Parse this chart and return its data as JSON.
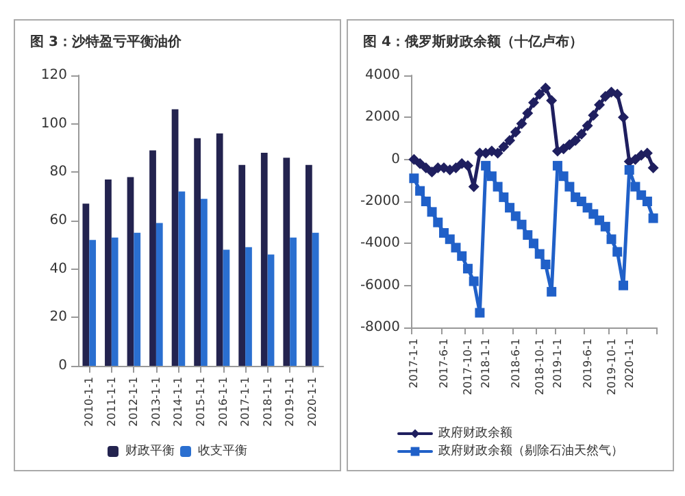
{
  "chart_data": [
    {
      "type": "bar",
      "title": "图 3：沙特盈亏平衡油价",
      "categories": [
        "2010-1-1",
        "2011-1-1",
        "2012-1-1",
        "2013-1-1",
        "2014-1-1",
        "2015-1-1",
        "2016-1-1",
        "2017-1-1",
        "2018-1-1",
        "2019-1-1",
        "2020-1-1"
      ],
      "series": [
        {
          "name": "财政平衡",
          "color": "#23234f",
          "values": [
            67,
            77,
            78,
            89,
            106,
            94,
            96,
            83,
            88,
            86,
            83
          ]
        },
        {
          "name": "收支平衡",
          "color": "#2a6fd0",
          "values": [
            52,
            53,
            55,
            59,
            72,
            69,
            48,
            49,
            46,
            53,
            55
          ]
        }
      ],
      "ylim": [
        0,
        120
      ],
      "yticks": [
        0,
        20,
        40,
        60,
        80,
        100,
        120
      ],
      "grid": false,
      "legend": "bottom"
    },
    {
      "type": "line",
      "title": "图 4：俄罗斯财政余额（十亿卢布）",
      "categories": [
        "2017-1-1",
        null,
        null,
        null,
        null,
        "2017-6-1",
        null,
        null,
        null,
        "2017-10-1",
        null,
        null,
        "2018-1-1",
        null,
        null,
        null,
        null,
        "2018-6-1",
        null,
        null,
        null,
        "2018-10-1",
        null,
        null,
        "2019-1-1",
        null,
        null,
        null,
        null,
        "2019-6-1",
        null,
        null,
        null,
        "2019-10-1",
        null,
        null,
        "2020-1-1",
        null,
        null,
        null,
        null
      ],
      "series": [
        {
          "name": "政府财政余额",
          "color": "#1f1f5f",
          "marker": "diamond",
          "values": [
            0,
            -200,
            -400,
            -600,
            -400,
            -400,
            -500,
            -400,
            -200,
            -300,
            -1300,
            300,
            300,
            400,
            300,
            600,
            900,
            1300,
            1700,
            2200,
            2700,
            3100,
            3400,
            2800,
            400,
            500,
            700,
            900,
            1200,
            1600,
            2100,
            2600,
            3000,
            3200,
            3100,
            2000,
            -100,
            0,
            200,
            300,
            -400
          ]
        },
        {
          "name": "政府财政余额（剔除石油天然气）",
          "color": "#2060c8",
          "marker": "square",
          "values": [
            -900,
            -1500,
            -2000,
            -2500,
            -3000,
            -3500,
            -3800,
            -4200,
            -4600,
            -5200,
            -5800,
            -7300,
            -300,
            -800,
            -1300,
            -1800,
            -2300,
            -2700,
            -3100,
            -3600,
            -4000,
            -4500,
            -5000,
            -6300,
            -300,
            -800,
            -1300,
            -1800,
            -2000,
            -2300,
            -2600,
            -2900,
            -3200,
            -3800,
            -4400,
            -6000,
            -500,
            -1300,
            -1700,
            -2000,
            -2800
          ]
        }
      ],
      "ylim": [
        -8000,
        4000
      ],
      "yticks": [
        -8000,
        -6000,
        -4000,
        -2000,
        0,
        2000,
        4000
      ],
      "grid": false,
      "legend": "bottom",
      "line_style": "solid"
    }
  ]
}
